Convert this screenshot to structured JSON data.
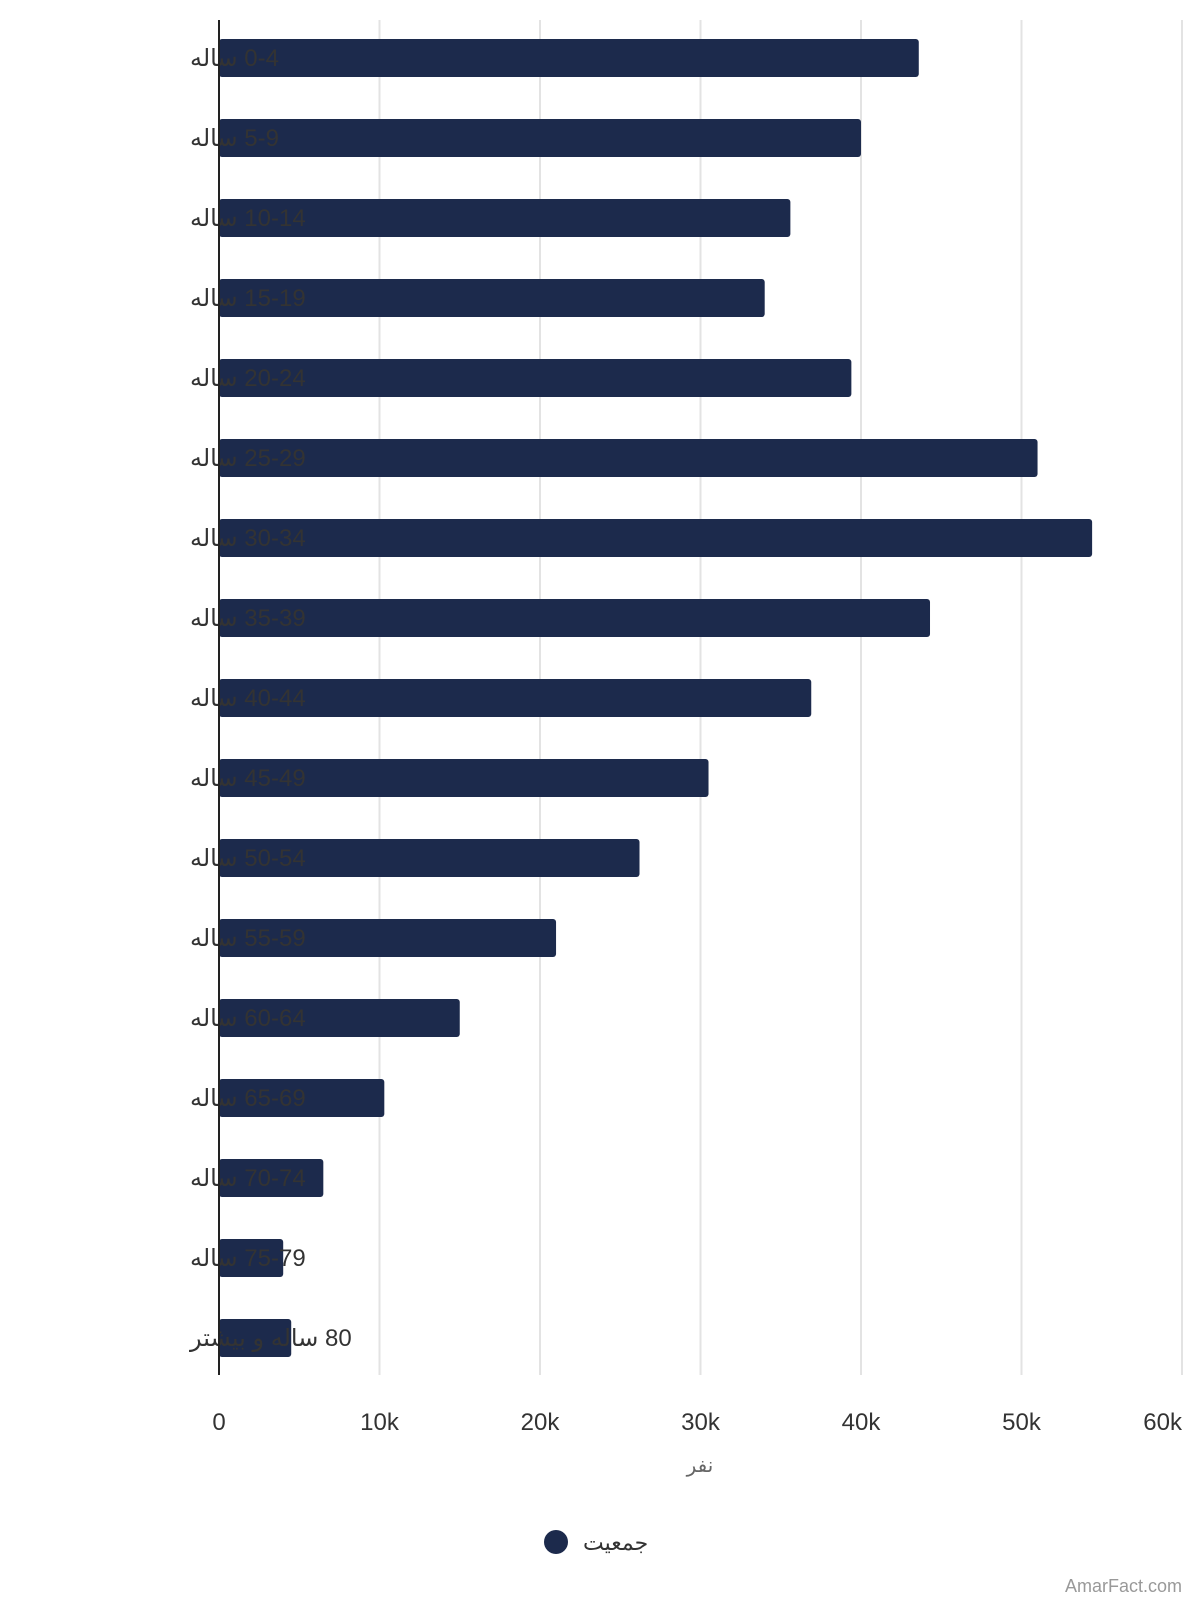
{
  "chart_data": {
    "type": "bar",
    "orientation": "horizontal",
    "categories": [
      "0-4 ساله",
      "5-9 ساله",
      "10-14 ساله",
      "15-19 ساله",
      "20-24 ساله",
      "25-29 ساله",
      "30-34 ساله",
      "35-39 ساله",
      "40-44 ساله",
      "45-49 ساله",
      "50-54 ساله",
      "55-59 ساله",
      "60-64 ساله",
      "65-69 ساله",
      "70-74 ساله",
      "75-79 ساله",
      "80 ساله و بیشتر"
    ],
    "series": [
      {
        "name": "جمعیت",
        "color": "#1c2a4c",
        "values": [
          43600,
          40000,
          35600,
          34000,
          39400,
          51000,
          54400,
          44300,
          36900,
          30500,
          26200,
          21000,
          15000,
          10300,
          6500,
          4000,
          4500
        ]
      }
    ],
    "xlabel": "نفر",
    "xlim": [
      0,
      60000
    ],
    "xticks": [
      0,
      10000,
      20000,
      30000,
      40000,
      50000,
      60000
    ],
    "xtick_labels": [
      "0",
      "10k",
      "20k",
      "30k",
      "40k",
      "50k",
      "60k"
    ],
    "grid": true,
    "legend_position": "bottom"
  },
  "watermark": "AmarFact.com"
}
